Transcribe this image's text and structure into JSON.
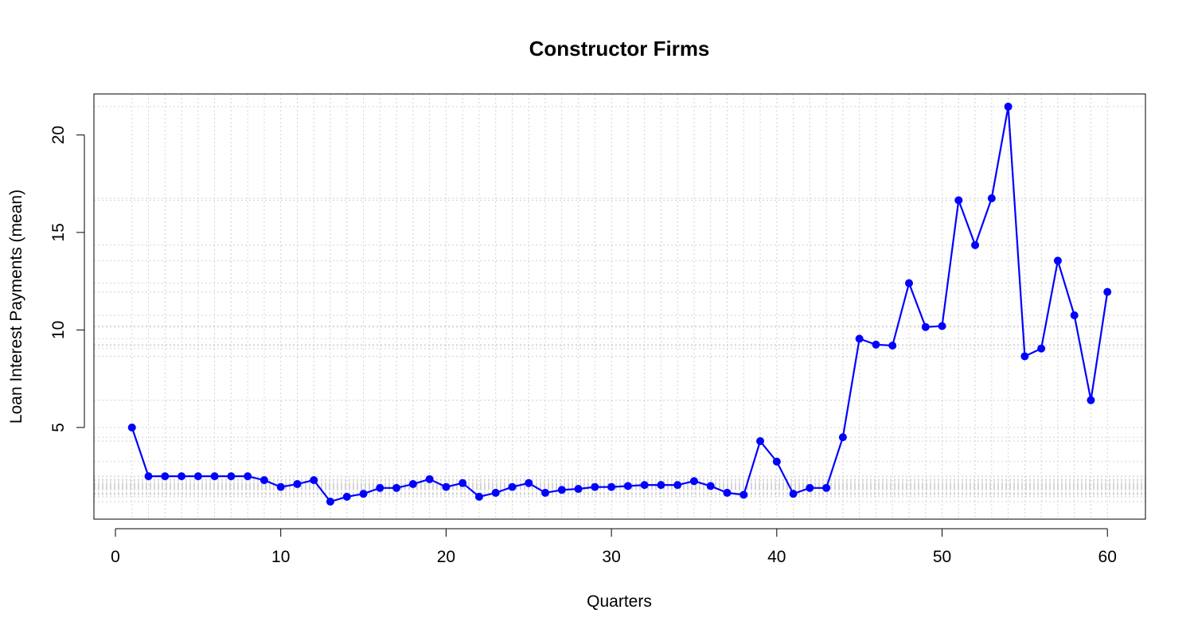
{
  "chart_data": {
    "type": "line",
    "title": "Constructor Firms",
    "xlabel": "Quarters",
    "ylabel": "Loan Interest Payments (mean)",
    "xlim": [
      -1.3,
      62.3
    ],
    "ylim": [
      0.3,
      22.1
    ],
    "x_ticks": [
      "0",
      "10",
      "20",
      "30",
      "40",
      "50",
      "60"
    ],
    "y_ticks": [
      "5",
      "10",
      "15",
      "20"
    ],
    "grid": true,
    "line_color": "#0000ff",
    "grid_color": "#d3d3d3",
    "series": [
      {
        "x": [
          1,
          2,
          3,
          4,
          5,
          6,
          7,
          8,
          9,
          10,
          11,
          12,
          13,
          14,
          15,
          16,
          17,
          18,
          19,
          20,
          21,
          22,
          23,
          24,
          25,
          26,
          27,
          28,
          29,
          30,
          31,
          32,
          33,
          34,
          35,
          36,
          37,
          38,
          39,
          40,
          41,
          42,
          43,
          44,
          45,
          46,
          47,
          48,
          49,
          50,
          51,
          52,
          53,
          54,
          55,
          56,
          57,
          58,
          59,
          60
        ],
        "values": [
          5.0,
          2.5,
          2.5,
          2.5,
          2.5,
          2.5,
          2.5,
          2.5,
          2.3,
          1.95,
          2.1,
          2.3,
          1.2,
          1.45,
          1.6,
          1.9,
          1.9,
          2.1,
          2.35,
          1.95,
          2.15,
          1.45,
          1.65,
          1.95,
          2.15,
          1.65,
          1.8,
          1.85,
          1.95,
          1.95,
          2.0,
          2.05,
          2.05,
          2.05,
          2.25,
          2.0,
          1.65,
          1.55,
          4.3,
          3.25,
          1.6,
          1.9,
          1.9,
          4.5,
          9.55,
          9.25,
          9.2,
          12.4,
          10.15,
          10.2,
          16.65,
          14.35,
          16.75,
          21.45,
          8.65,
          9.05,
          13.55,
          10.75,
          6.4,
          11.95
        ]
      }
    ]
  }
}
